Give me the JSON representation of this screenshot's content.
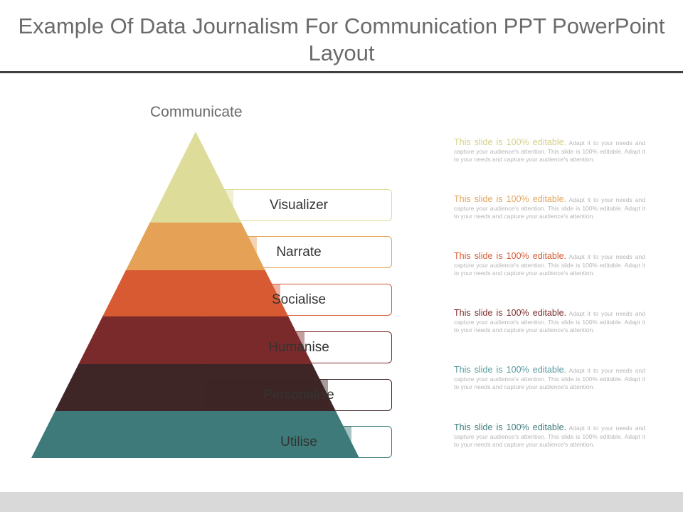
{
  "title": "Example Of Data Journalism For Communication PPT PowerPoint Layout",
  "apex_label": "Communicate",
  "levels": [
    {
      "label": "Visualizer",
      "color": "#dedc99",
      "lead": "This slide is 100% editable.",
      "body": "Adapt it to your needs and capture your audience's attention. This slide is 100% editable. Adapt it to your needs and capture your audience's attention."
    },
    {
      "label": "Narrate",
      "color": "#e5a257",
      "lead": "This slide is 100% editable.",
      "body": "Adapt it to your needs and capture your audience's attention. This slide is 100% editable. Adapt it to your needs and capture your audience's attention."
    },
    {
      "label": "Socialise",
      "color": "#d75a33",
      "lead": "This slide is 100% editable.",
      "body": "Adapt it to your needs and capture your audience's attention. This slide is 100% editable. Adapt it to your needs and capture your audience's attention."
    },
    {
      "label": "Humanise",
      "color": "#7a2a2a",
      "lead": "This slide is 100% editable.",
      "body": "Adapt it to your needs and capture your audience's attention. This slide is 100% editable. Adapt it to your needs and capture your audience's attention."
    },
    {
      "label": "Personalise",
      "color": "#3e2626",
      "lead": "This slide is 100% editable.",
      "body": "Adapt it to your needs and capture your audience's attention. This slide is 100% editable. Adapt it to your needs and capture your audience's attention."
    },
    {
      "label": "Utilise",
      "color": "#3d7a79",
      "lead": "This slide is 100% editable.",
      "body": "Adapt it to your needs and capture your audience's attention. This slide is 100% editable. Adapt it to your needs and capture your audience's attention."
    }
  ],
  "lead_colors": [
    "#d4d08a",
    "#e1a55f",
    "#d75a33",
    "#7a2a2a",
    "#5a9a9e",
    "#3d7a79"
  ]
}
